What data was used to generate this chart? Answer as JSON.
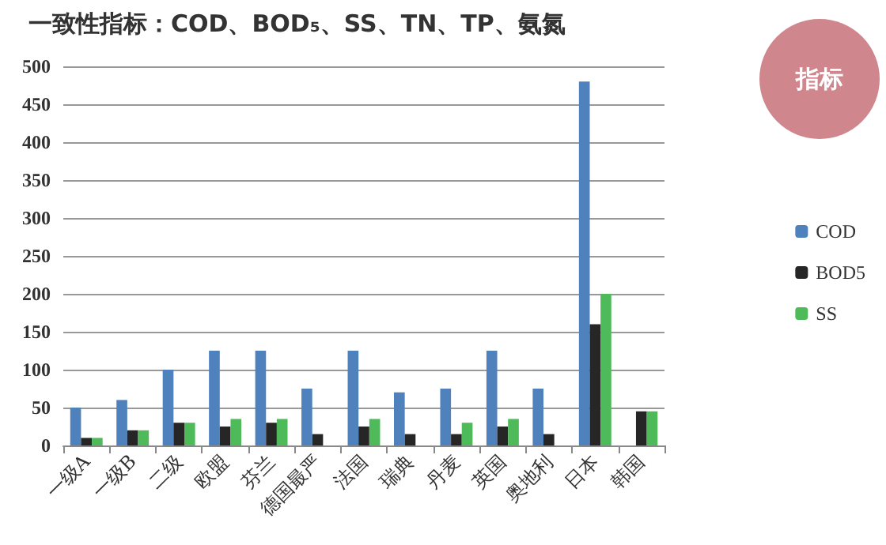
{
  "chart_data": {
    "type": "bar",
    "title": "一致性指标：COD、BOD₅、SS、TN、TP、氨氮",
    "annotations": [
      "指标"
    ],
    "categories": [
      "一级A",
      "一级B",
      "二级",
      "欧盟",
      "芬兰",
      "德国最严",
      "法国",
      "瑞典",
      "丹麦",
      "英国",
      "奥地利",
      "日本",
      "韩国"
    ],
    "series": [
      {
        "name": "COD",
        "color": "#4f81bd",
        "values": [
          50,
          60,
          100,
          125,
          125,
          75,
          125,
          70,
          75,
          125,
          75,
          480,
          null
        ]
      },
      {
        "name": "BOD5",
        "color": "#262626",
        "values": [
          10,
          20,
          30,
          25,
          30,
          15,
          25,
          15,
          15,
          25,
          15,
          160,
          45
        ]
      },
      {
        "name": "SS",
        "color": "#4fba5a",
        "values": [
          10,
          20,
          30,
          35,
          35,
          null,
          35,
          null,
          30,
          35,
          null,
          200,
          45
        ]
      }
    ],
    "ylim": [
      0,
      500
    ],
    "yticks": [
      0,
      50,
      100,
      150,
      200,
      250,
      300,
      350,
      400,
      450,
      500
    ],
    "grid": "y",
    "legend": "right"
  }
}
